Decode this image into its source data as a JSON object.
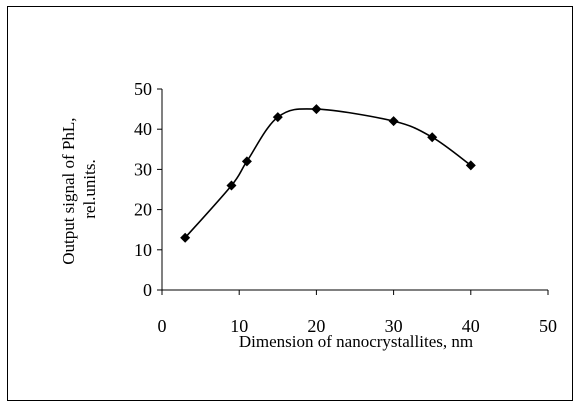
{
  "chart_data": {
    "type": "line",
    "smooth": true,
    "marker": "diamond",
    "title": "",
    "xlabel": "Dimension of nanocrystallites, nm",
    "ylabel": [
      "Output signal of PhL,",
      "rel.units."
    ],
    "xlim": [
      0,
      50
    ],
    "ylim": [
      0,
      50
    ],
    "xticks": [
      0,
      10,
      20,
      30,
      40,
      50
    ],
    "yticks": [
      0,
      10,
      20,
      30,
      40,
      50
    ],
    "grid": false,
    "legend": "none",
    "series": [
      {
        "x": [
          3,
          9,
          11,
          15,
          20,
          30,
          35,
          40
        ],
        "y": [
          13,
          26,
          32,
          43,
          45,
          42,
          38,
          31
        ],
        "color": "#000000"
      }
    ]
  }
}
